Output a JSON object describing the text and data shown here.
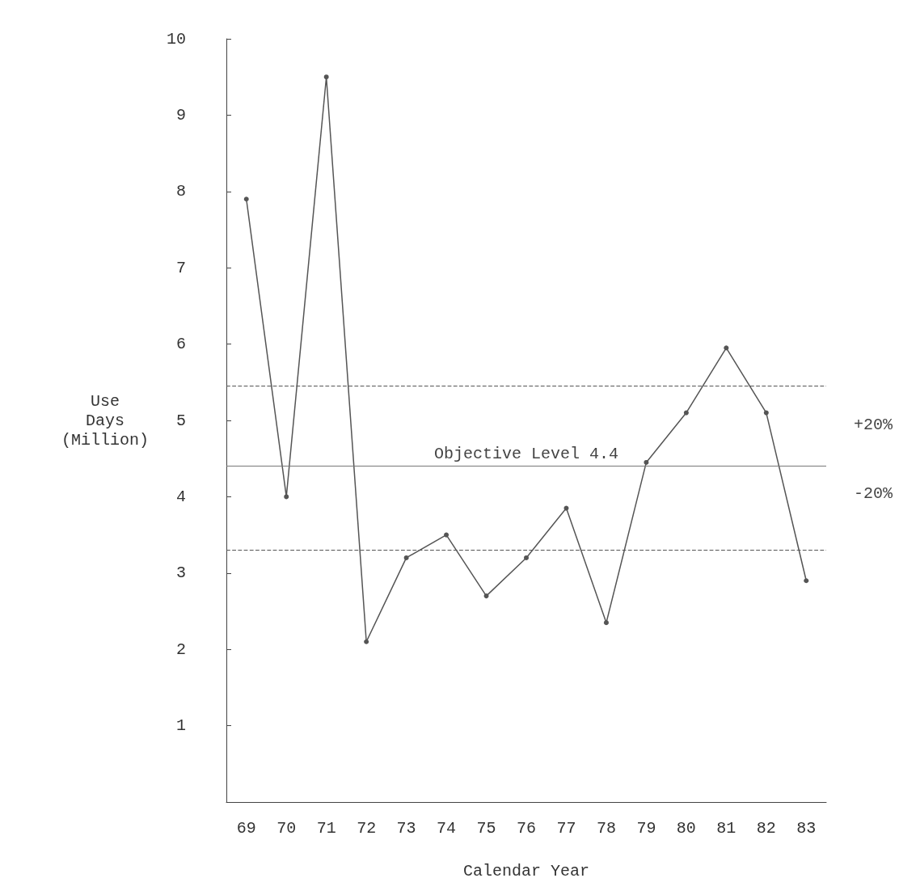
{
  "chart_data": {
    "type": "line",
    "xlabel": "Calendar Year",
    "ylabel": "Use\nDays\n(Million)",
    "categories": [
      "69",
      "70",
      "71",
      "72",
      "73",
      "74",
      "75",
      "76",
      "77",
      "78",
      "79",
      "80",
      "81",
      "82",
      "83"
    ],
    "series": [
      {
        "color": "#555555",
        "values": [
          7.9,
          4.0,
          9.5,
          2.1,
          3.2,
          3.5,
          2.7,
          3.2,
          3.85,
          2.35,
          4.45,
          5.1,
          5.95,
          5.1,
          2.9
        ]
      }
    ],
    "ylim": [
      0,
      10
    ],
    "yticks": [
      1,
      2,
      3,
      4,
      5,
      6,
      7,
      8,
      9,
      10
    ],
    "grid": false,
    "marker": "circle",
    "line_style": "solid",
    "ref_lines": [
      {
        "axis": "y",
        "value": 4.4,
        "label": "Objective Level 4.4",
        "color": "#777777",
        "line_style": "solid"
      },
      {
        "axis": "y",
        "value": 5.45,
        "color": "#555555",
        "line_style": "dashed"
      },
      {
        "axis": "y",
        "value": 3.3,
        "color": "#555555",
        "line_style": "dashed"
      }
    ],
    "annotations": [
      "+20%",
      "-20%"
    ]
  }
}
